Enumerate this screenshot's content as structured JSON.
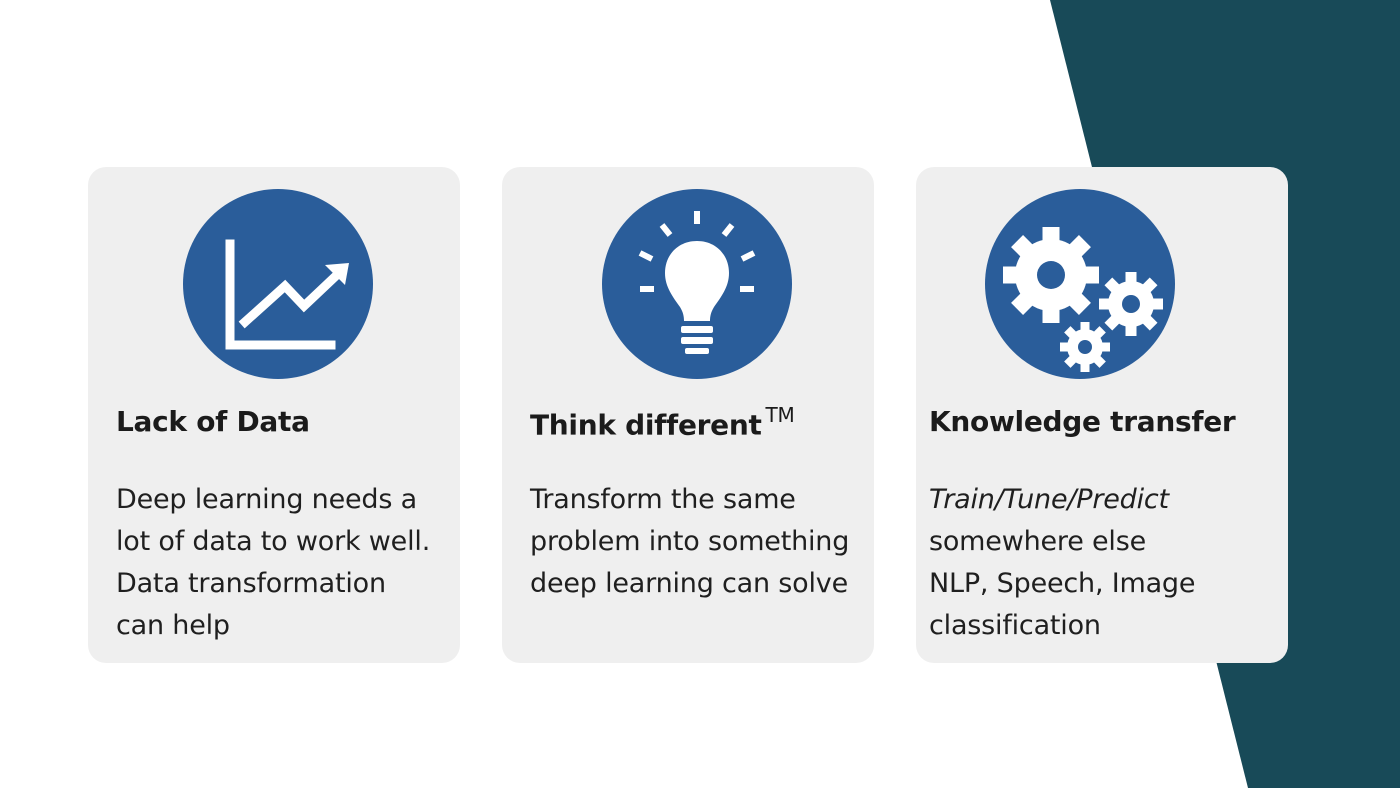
{
  "colors": {
    "accent_panel": "#184a58",
    "icon_circle": "#2a5d9a",
    "card_background": "#efefef"
  },
  "cards": [
    {
      "icon": "chart-trend-up-icon",
      "title": "Lack of Data",
      "body_lines": [
        "Deep learning needs a",
        "lot of data to work well.",
        "Data transformation",
        "can help"
      ]
    },
    {
      "icon": "lightbulb-icon",
      "title": "Think different",
      "title_mark": "TM",
      "body_lines": [
        "Transform the same",
        "problem into something",
        "deep learning can solve"
      ]
    },
    {
      "icon": "gears-icon",
      "title": "Knowledge transfer",
      "body_lines_italic": "Train/Tune/Predict",
      "body_lines": [
        "somewhere else",
        "NLP, Speech, Image",
        "classification"
      ]
    }
  ]
}
